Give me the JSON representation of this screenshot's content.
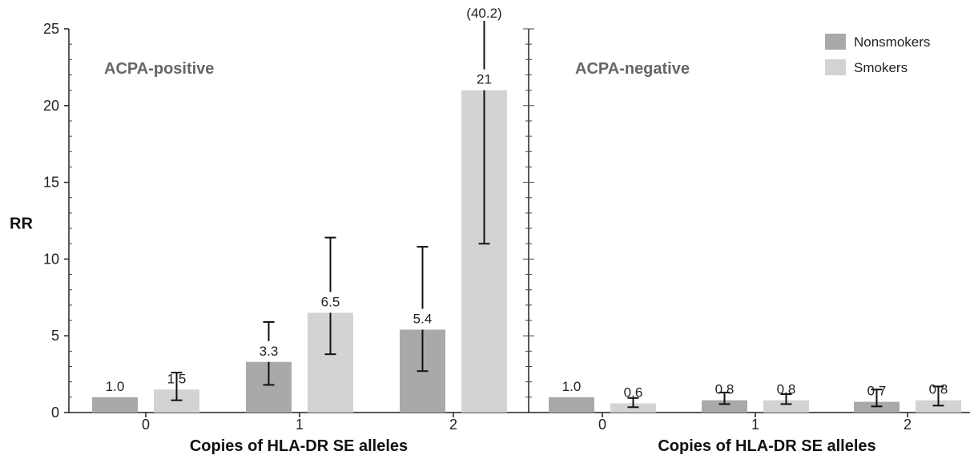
{
  "chart_data": {
    "type": "bar",
    "ylabel": "RR",
    "ylim": [
      0,
      25
    ],
    "yticks": [
      "0",
      "5",
      "10",
      "15",
      "20",
      "25"
    ],
    "categories": [
      "0",
      "1",
      "2"
    ],
    "legend": {
      "placement": "top-right",
      "entries": [
        {
          "label": "Nonsmokers",
          "color": "#a9a9a9"
        },
        {
          "label": "Smokers",
          "color": "#d3d3d3"
        }
      ]
    },
    "panels": [
      {
        "title": "ACPA-positive",
        "xlabel": "Copies of HLA-DR SE alleles",
        "series": [
          {
            "name": "Nonsmokers",
            "values": [
              1.0,
              3.3,
              5.4
            ],
            "labels": [
              "1.0",
              "3.3",
              "5.4"
            ],
            "ci_low": [
              null,
              1.8,
              2.7
            ],
            "ci_high": [
              null,
              5.9,
              10.8
            ]
          },
          {
            "name": "Smokers",
            "values": [
              1.5,
              6.5,
              21
            ],
            "labels": [
              "1.5",
              "6.5",
              "21"
            ],
            "ci_low": [
              0.8,
              3.8,
              11.0
            ],
            "ci_high": [
              2.6,
              11.4,
              40.2
            ]
          }
        ],
        "annotation": "(40.2)"
      },
      {
        "title": "ACPA-negative",
        "xlabel": "Copies of HLA-DR SE alleles",
        "series": [
          {
            "name": "Nonsmokers",
            "values": [
              1.0,
              0.8,
              0.7
            ],
            "labels": [
              "1.0",
              "0.8",
              "0.7"
            ],
            "ci_low": [
              null,
              0.55,
              0.4
            ],
            "ci_high": [
              null,
              1.3,
              1.5
            ]
          },
          {
            "name": "Smokers",
            "values": [
              0.6,
              0.8,
              0.8
            ],
            "labels": [
              "0.6",
              "0.8",
              "0.8"
            ],
            "ci_low": [
              0.35,
              0.55,
              0.45
            ],
            "ci_high": [
              0.95,
              1.2,
              1.7
            ]
          }
        ]
      }
    ]
  }
}
